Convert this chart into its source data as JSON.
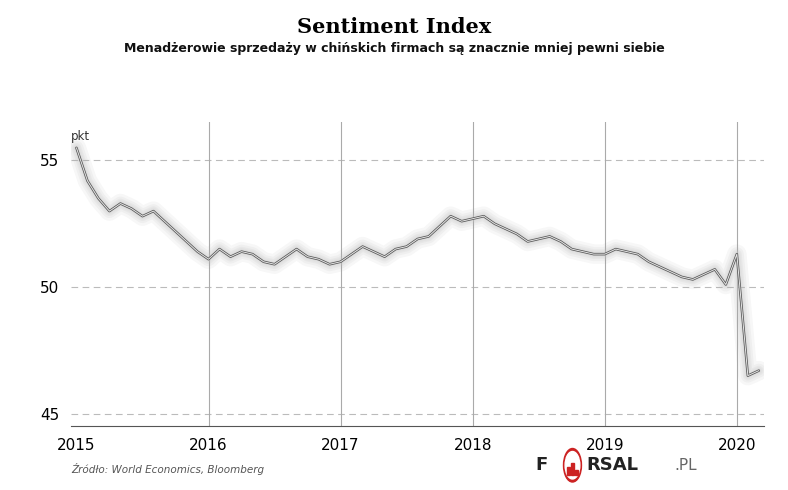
{
  "title": "Sentiment Index",
  "subtitle": "Menadżerowie sprzedaży w chińskich firmach są znacznie mniej pewni siebie",
  "ylabel": "pkt",
  "source": "Źródło: World Economics, Bloomberg",
  "ylim": [
    44.5,
    56.5
  ],
  "yticks": [
    45,
    50,
    55
  ],
  "background_color": "#ffffff",
  "grid_color": "#bbbbbb",
  "xtick_years": [
    2015,
    2016,
    2017,
    2018,
    2019,
    2020
  ],
  "xtick_positions": [
    0,
    12,
    24,
    36,
    48,
    60
  ],
  "values": [
    55.5,
    54.2,
    53.5,
    53.0,
    53.3,
    53.1,
    52.8,
    53.0,
    52.6,
    52.2,
    51.8,
    51.4,
    51.1,
    51.5,
    51.2,
    51.4,
    51.3,
    51.0,
    50.9,
    51.2,
    51.5,
    51.2,
    51.1,
    50.9,
    51.0,
    51.3,
    51.6,
    51.4,
    51.2,
    51.5,
    51.6,
    51.9,
    52.0,
    52.4,
    52.8,
    52.6,
    52.7,
    52.8,
    52.5,
    52.3,
    52.1,
    51.8,
    51.9,
    52.0,
    51.8,
    51.5,
    51.4,
    51.3,
    51.3,
    51.5,
    51.4,
    51.3,
    51.0,
    50.8,
    50.6,
    50.4,
    50.3,
    50.5,
    50.7,
    50.1,
    51.3,
    46.5,
    46.7
  ]
}
